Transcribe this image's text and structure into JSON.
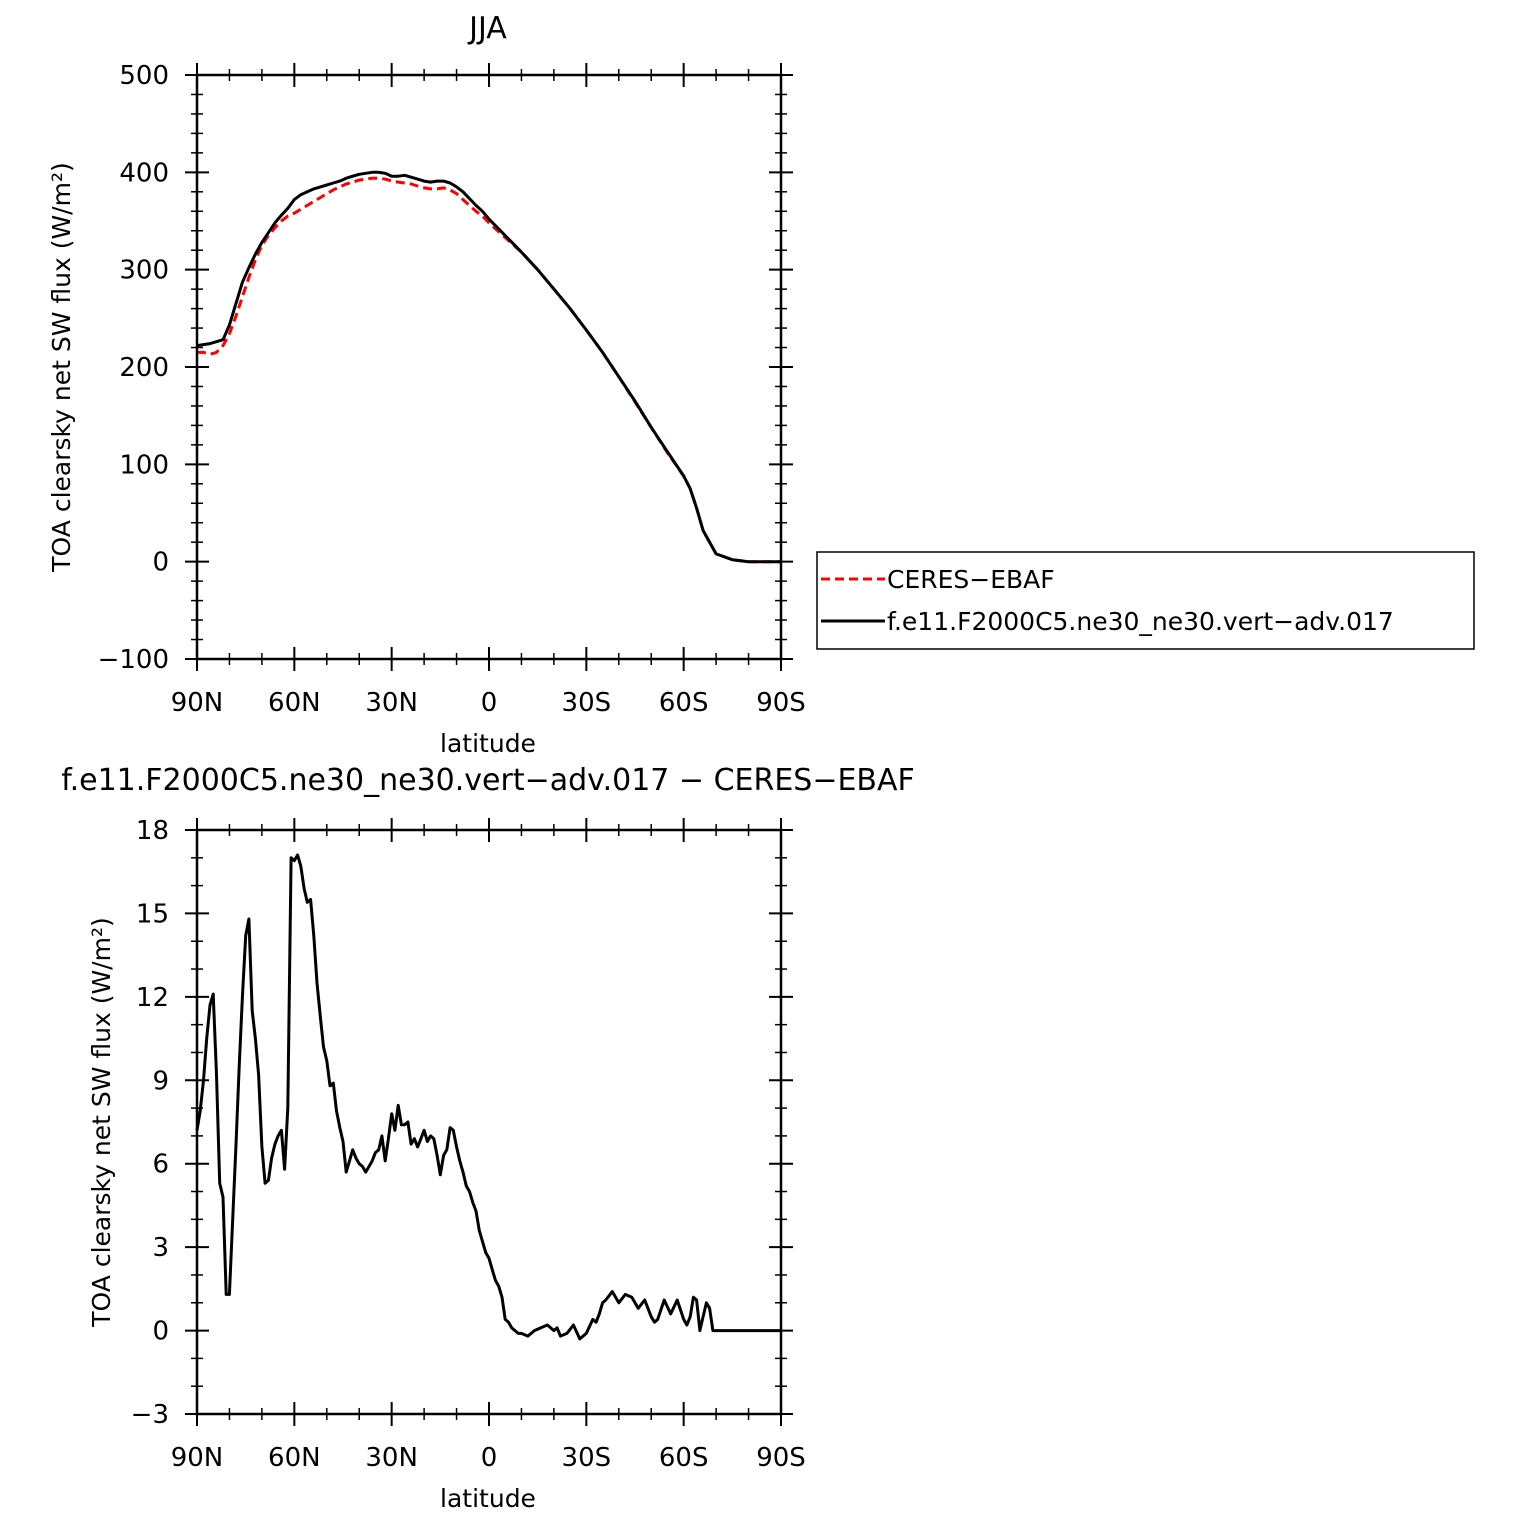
{
  "chart_data": [
    {
      "type": "line",
      "title": "JJA",
      "xlabel": "latitude",
      "ylabel": "TOA clearsky net SW flux (W/m²)",
      "xlim": [
        90,
        -90
      ],
      "ylim": [
        -100,
        500
      ],
      "x_tick_values": [
        90,
        60,
        30,
        0,
        -30,
        -60,
        -90
      ],
      "x_tick_labels": [
        "90N",
        "60N",
        "30N",
        "0",
        "30S",
        "60S",
        "90S"
      ],
      "y_ticks": [
        -100,
        0,
        100,
        200,
        300,
        400,
        500
      ],
      "grid": false,
      "legend_position": "right",
      "series": [
        {
          "name": "CERES−EBAF",
          "color": "#ff0000",
          "style": "dashed",
          "x": [
            90,
            88,
            86,
            84,
            82,
            80,
            78,
            76,
            74,
            72,
            70,
            68,
            66,
            64,
            62,
            60,
            58,
            56,
            54,
            52,
            50,
            48,
            46,
            44,
            42,
            40,
            38,
            36,
            34,
            32,
            30,
            28,
            26,
            24,
            22,
            20,
            18,
            16,
            14,
            12,
            10,
            8,
            6,
            4,
            2,
            0,
            -5,
            -10,
            -15,
            -20,
            -25,
            -30,
            -35,
            -40,
            -45,
            -50,
            -55,
            -60,
            -62,
            -64,
            -66,
            -70,
            -75,
            -80,
            -85,
            -90
          ],
          "y": [
            215,
            215,
            213,
            215,
            222,
            234,
            252,
            272,
            292,
            310,
            325,
            335,
            343,
            350,
            355,
            358,
            362,
            366,
            370,
            374,
            378,
            382,
            385,
            388,
            390,
            392,
            393,
            394,
            394,
            393,
            391,
            390,
            389,
            388,
            386,
            384,
            383,
            383,
            384,
            382,
            378,
            372,
            366,
            360,
            355,
            348,
            333,
            318,
            300,
            280,
            260,
            238,
            215,
            190,
            164,
            138,
            112,
            88,
            75,
            55,
            32,
            8,
            2,
            0,
            0,
            0
          ]
        },
        {
          "name": "f.e11.F2000C5.ne30_ne30.vert−adv.017",
          "color": "#000000",
          "style": "solid",
          "x": [
            90,
            88,
            86,
            84,
            82,
            80,
            78,
            76,
            74,
            72,
            70,
            68,
            66,
            64,
            62,
            60,
            58,
            56,
            54,
            52,
            50,
            48,
            46,
            44,
            42,
            40,
            38,
            36,
            34,
            32,
            30,
            28,
            26,
            24,
            22,
            20,
            18,
            16,
            14,
            12,
            10,
            8,
            6,
            4,
            2,
            0,
            -5,
            -10,
            -15,
            -20,
            -25,
            -30,
            -35,
            -40,
            -45,
            -50,
            -55,
            -60,
            -62,
            -64,
            -66,
            -70,
            -75,
            -80,
            -85,
            -90
          ],
          "y": [
            222,
            223,
            224,
            226,
            228,
            243,
            265,
            287,
            302,
            316,
            328,
            338,
            348,
            356,
            363,
            372,
            377,
            380,
            383,
            385,
            387,
            389,
            391,
            394,
            396,
            398,
            399,
            400,
            400,
            399,
            396,
            396,
            397,
            395,
            393,
            391,
            390,
            391,
            391,
            389,
            385,
            380,
            373,
            366,
            360,
            352,
            335,
            318,
            300,
            280,
            260,
            238,
            215,
            190,
            165,
            138,
            113,
            88,
            75,
            55,
            32,
            8,
            2,
            0,
            0,
            0
          ]
        }
      ]
    },
    {
      "type": "line",
      "title": "f.e11.F2000C5.ne30_ne30.vert−adv.017 − CERES−EBAF",
      "xlabel": "latitude",
      "ylabel": "TOA clearsky net SW flux (W/m²)",
      "xlim": [
        90,
        -90
      ],
      "ylim": [
        -3,
        18
      ],
      "x_tick_values": [
        90,
        60,
        30,
        0,
        -30,
        -60,
        -90
      ],
      "x_tick_labels": [
        "90N",
        "60N",
        "30N",
        "0",
        "30S",
        "60S",
        "90S"
      ],
      "y_ticks": [
        -3,
        0,
        3,
        6,
        9,
        12,
        15,
        18
      ],
      "grid": false,
      "series": [
        {
          "color": "#000000",
          "style": "solid",
          "x": [
            90,
            89,
            88,
            87,
            86,
            85,
            84,
            83,
            82,
            81,
            80,
            79,
            78,
            77,
            76,
            75,
            74,
            73,
            72,
            71,
            70,
            69,
            68,
            67,
            66,
            65,
            64,
            63,
            62,
            61,
            60,
            59,
            58,
            57,
            56,
            55,
            54,
            53,
            52,
            51,
            50,
            49,
            48,
            47,
            46,
            45,
            44,
            43,
            42,
            41,
            40,
            39,
            38,
            37,
            36,
            35,
            34,
            33,
            32,
            31,
            30,
            29,
            28,
            27,
            26,
            25,
            24,
            23,
            22,
            21,
            20,
            19,
            18,
            17,
            16,
            15,
            14,
            13,
            12,
            11,
            10,
            9,
            8,
            7,
            6,
            5,
            4,
            3,
            2,
            1,
            0,
            -1,
            -2,
            -3,
            -4,
            -5,
            -6,
            -7,
            -8,
            -9,
            -10,
            -12,
            -14,
            -16,
            -18,
            -20,
            -21,
            -22,
            -24,
            -26,
            -28,
            -30,
            -32,
            -33,
            -34,
            -35,
            -36,
            -38,
            -40,
            -42,
            -44,
            -46,
            -48,
            -50,
            -51,
            -52,
            -54,
            -56,
            -58,
            -60,
            -61,
            -62,
            -63,
            -64,
            -65,
            -66,
            -67,
            -68,
            -69,
            -70,
            -72,
            -74,
            -76,
            -77,
            -78,
            -80,
            -82,
            -84,
            -86,
            -88,
            -90
          ],
          "y": [
            7.2,
            7.9,
            9.0,
            10.5,
            11.7,
            12.1,
            9.2,
            5.3,
            4.8,
            1.3,
            1.3,
            4.0,
            6.6,
            9.5,
            12.0,
            14.2,
            14.8,
            11.5,
            10.5,
            9.2,
            6.6,
            5.3,
            5.4,
            6.2,
            6.7,
            7.0,
            7.2,
            5.8,
            8.0,
            17.0,
            16.9,
            17.1,
            16.7,
            15.9,
            15.4,
            15.5,
            14.2,
            12.5,
            11.3,
            10.2,
            9.7,
            8.8,
            8.9,
            7.9,
            7.3,
            6.8,
            5.7,
            6.1,
            6.5,
            6.2,
            6.0,
            5.9,
            5.7,
            5.9,
            6.1,
            6.4,
            6.5,
            7.0,
            6.1,
            6.9,
            7.8,
            7.2,
            8.1,
            7.4,
            7.4,
            7.5,
            6.7,
            6.9,
            6.6,
            6.9,
            7.2,
            6.8,
            7.0,
            6.9,
            6.3,
            5.6,
            6.3,
            6.5,
            7.3,
            7.2,
            6.6,
            6.1,
            5.7,
            5.2,
            5.0,
            4.6,
            4.3,
            3.6,
            3.2,
            2.8,
            2.6,
            2.2,
            1.8,
            1.6,
            1.2,
            0.4,
            0.3,
            0.1,
            0.0,
            -0.1,
            -0.1,
            -0.2,
            0.0,
            0.1,
            0.2,
            0.0,
            0.1,
            -0.2,
            -0.1,
            0.2,
            -0.3,
            -0.1,
            0.4,
            0.3,
            0.6,
            1.0,
            1.1,
            1.4,
            1.0,
            1.3,
            1.2,
            0.8,
            1.1,
            0.5,
            0.3,
            0.4,
            1.1,
            0.6,
            1.1,
            0.4,
            0.2,
            0.5,
            1.2,
            1.1,
            0.0,
            0.5,
            1.0,
            0.8,
            0.0,
            0.0,
            0.0,
            0.0,
            0.0,
            0.0,
            0.0,
            0.0,
            0.0,
            0.0,
            0.0,
            0.0,
            0.0
          ]
        }
      ]
    }
  ]
}
